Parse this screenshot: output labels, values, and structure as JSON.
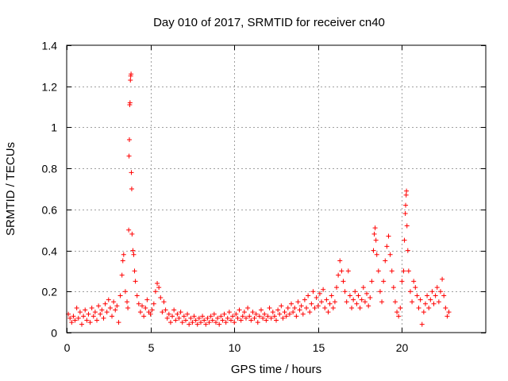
{
  "chart_data": {
    "type": "scatter",
    "title": "Day 010 of 2017, SRMTID for receiver cn40",
    "xlabel": "GPS time / hours",
    "ylabel": "SRMTID / TECUs",
    "xlim": [
      0,
      25
    ],
    "ylim": [
      0,
      1.4
    ],
    "xticks": [
      0,
      5,
      10,
      15,
      20
    ],
    "xtick_labels": [
      "0",
      "5",
      "10",
      "15",
      "20"
    ],
    "yticks": [
      0,
      0.2,
      0.4,
      0.6,
      0.8,
      1.0,
      1.2,
      1.4
    ],
    "ytick_labels": [
      "0",
      "0.2",
      "0.4",
      "0.6",
      "0.8",
      "1",
      "1.2",
      "1.4"
    ],
    "grid": true,
    "marker": "+",
    "color": "#ff0000",
    "series": [
      {
        "name": "SRMTID",
        "points": [
          [
            0.1,
            0.09
          ],
          [
            0.2,
            0.07
          ],
          [
            0.3,
            0.05
          ],
          [
            0.4,
            0.08
          ],
          [
            0.5,
            0.06
          ],
          [
            0.6,
            0.12
          ],
          [
            0.7,
            0.07
          ],
          [
            0.8,
            0.1
          ],
          [
            0.9,
            0.04
          ],
          [
            1.0,
            0.08
          ],
          [
            1.1,
            0.11
          ],
          [
            1.2,
            0.06
          ],
          [
            1.3,
            0.09
          ],
          [
            1.4,
            0.05
          ],
          [
            1.5,
            0.12
          ],
          [
            1.6,
            0.08
          ],
          [
            1.7,
            0.1
          ],
          [
            1.8,
            0.06
          ],
          [
            1.9,
            0.13
          ],
          [
            2.0,
            0.09
          ],
          [
            2.1,
            0.11
          ],
          [
            2.2,
            0.07
          ],
          [
            2.3,
            0.14
          ],
          [
            2.4,
            0.1
          ],
          [
            2.5,
            0.16
          ],
          [
            2.6,
            0.12
          ],
          [
            2.7,
            0.08
          ],
          [
            2.8,
            0.15
          ],
          [
            2.9,
            0.11
          ],
          [
            3.0,
            0.13
          ],
          [
            3.1,
            0.05
          ],
          [
            3.2,
            0.18
          ],
          [
            3.3,
            0.28
          ],
          [
            3.35,
            0.35
          ],
          [
            3.4,
            0.38
          ],
          [
            3.5,
            0.2
          ],
          [
            3.6,
            0.15
          ],
          [
            3.65,
            0.12
          ],
          [
            3.7,
            0.5
          ],
          [
            3.72,
            0.86
          ],
          [
            3.74,
            0.94
          ],
          [
            3.76,
            1.11
          ],
          [
            3.78,
            1.12
          ],
          [
            3.8,
            1.23
          ],
          [
            3.82,
            1.25
          ],
          [
            3.84,
            1.26
          ],
          [
            3.86,
            0.78
          ],
          [
            3.88,
            0.7
          ],
          [
            3.9,
            0.48
          ],
          [
            3.95,
            0.4
          ],
          [
            4.0,
            0.38
          ],
          [
            4.05,
            0.3
          ],
          [
            4.1,
            0.25
          ],
          [
            4.2,
            0.18
          ],
          [
            4.3,
            0.14
          ],
          [
            4.4,
            0.1
          ],
          [
            4.5,
            0.13
          ],
          [
            4.6,
            0.08
          ],
          [
            4.7,
            0.12
          ],
          [
            4.8,
            0.16
          ],
          [
            4.9,
            0.1
          ],
          [
            5.0,
            0.09
          ],
          [
            5.1,
            0.11
          ],
          [
            5.2,
            0.14
          ],
          [
            5.3,
            0.2
          ],
          [
            5.4,
            0.24
          ],
          [
            5.5,
            0.22
          ],
          [
            5.6,
            0.17
          ],
          [
            5.7,
            0.1
          ],
          [
            5.8,
            0.15
          ],
          [
            5.9,
            0.11
          ],
          [
            6.0,
            0.07
          ],
          [
            6.1,
            0.09
          ],
          [
            6.2,
            0.05
          ],
          [
            6.3,
            0.08
          ],
          [
            6.4,
            0.11
          ],
          [
            6.5,
            0.06
          ],
          [
            6.6,
            0.09
          ],
          [
            6.7,
            0.07
          ],
          [
            6.8,
            0.1
          ],
          [
            6.9,
            0.05
          ],
          [
            7.0,
            0.08
          ],
          [
            7.1,
            0.06
          ],
          [
            7.2,
            0.09
          ],
          [
            7.3,
            0.04
          ],
          [
            7.4,
            0.07
          ],
          [
            7.5,
            0.05
          ],
          [
            7.6,
            0.08
          ],
          [
            7.7,
            0.06
          ],
          [
            7.8,
            0.04
          ],
          [
            7.9,
            0.07
          ],
          [
            8.0,
            0.05
          ],
          [
            8.1,
            0.08
          ],
          [
            8.2,
            0.06
          ],
          [
            8.3,
            0.04
          ],
          [
            8.4,
            0.07
          ],
          [
            8.5,
            0.05
          ],
          [
            8.6,
            0.08
          ],
          [
            8.7,
            0.06
          ],
          [
            8.8,
            0.09
          ],
          [
            8.9,
            0.05
          ],
          [
            9.0,
            0.07
          ],
          [
            9.1,
            0.04
          ],
          [
            9.2,
            0.08
          ],
          [
            9.3,
            0.06
          ],
          [
            9.4,
            0.09
          ],
          [
            9.5,
            0.05
          ],
          [
            9.6,
            0.07
          ],
          [
            9.7,
            0.1
          ],
          [
            9.8,
            0.06
          ],
          [
            9.9,
            0.08
          ],
          [
            10.0,
            0.05
          ],
          [
            10.1,
            0.09
          ],
          [
            10.2,
            0.07
          ],
          [
            10.3,
            0.11
          ],
          [
            10.4,
            0.06
          ],
          [
            10.5,
            0.08
          ],
          [
            10.6,
            0.1
          ],
          [
            10.7,
            0.07
          ],
          [
            10.8,
            0.12
          ],
          [
            10.9,
            0.08
          ],
          [
            11.0,
            0.06
          ],
          [
            11.1,
            0.1
          ],
          [
            11.2,
            0.07
          ],
          [
            11.3,
            0.09
          ],
          [
            11.4,
            0.05
          ],
          [
            11.5,
            0.08
          ],
          [
            11.6,
            0.11
          ],
          [
            11.7,
            0.07
          ],
          [
            11.8,
            0.09
          ],
          [
            11.9,
            0.06
          ],
          [
            12.0,
            0.08
          ],
          [
            12.1,
            0.12
          ],
          [
            12.2,
            0.07
          ],
          [
            12.3,
            0.1
          ],
          [
            12.4,
            0.08
          ],
          [
            12.5,
            0.06
          ],
          [
            12.6,
            0.11
          ],
          [
            12.7,
            0.09
          ],
          [
            12.8,
            0.13
          ],
          [
            12.9,
            0.07
          ],
          [
            13.0,
            0.1
          ],
          [
            13.1,
            0.08
          ],
          [
            13.2,
            0.12
          ],
          [
            13.3,
            0.09
          ],
          [
            13.4,
            0.14
          ],
          [
            13.5,
            0.1
          ],
          [
            13.6,
            0.12
          ],
          [
            13.7,
            0.08
          ],
          [
            13.8,
            0.15
          ],
          [
            13.9,
            0.11
          ],
          [
            14.0,
            0.13
          ],
          [
            14.1,
            0.09
          ],
          [
            14.2,
            0.16
          ],
          [
            14.3,
            0.12
          ],
          [
            14.4,
            0.18
          ],
          [
            14.5,
            0.1
          ],
          [
            14.6,
            0.14
          ],
          [
            14.7,
            0.2
          ],
          [
            14.8,
            0.12
          ],
          [
            14.9,
            0.17
          ],
          [
            15.0,
            0.13
          ],
          [
            15.1,
            0.19
          ],
          [
            15.2,
            0.15
          ],
          [
            15.3,
            0.21
          ],
          [
            15.4,
            0.12
          ],
          [
            15.5,
            0.16
          ],
          [
            15.6,
            0.1
          ],
          [
            15.7,
            0.14
          ],
          [
            15.8,
            0.18
          ],
          [
            15.9,
            0.12
          ],
          [
            16.0,
            0.15
          ],
          [
            16.1,
            0.22
          ],
          [
            16.2,
            0.28
          ],
          [
            16.3,
            0.35
          ],
          [
            16.4,
            0.3
          ],
          [
            16.5,
            0.25
          ],
          [
            16.6,
            0.2
          ],
          [
            16.7,
            0.15
          ],
          [
            16.8,
            0.3
          ],
          [
            16.9,
            0.18
          ],
          [
            17.0,
            0.12
          ],
          [
            17.1,
            0.16
          ],
          [
            17.2,
            0.2
          ],
          [
            17.3,
            0.14
          ],
          [
            17.4,
            0.18
          ],
          [
            17.5,
            0.12
          ],
          [
            17.6,
            0.16
          ],
          [
            17.7,
            0.22
          ],
          [
            17.8,
            0.15
          ],
          [
            17.9,
            0.19
          ],
          [
            18.0,
            0.13
          ],
          [
            18.1,
            0.17
          ],
          [
            18.2,
            0.25
          ],
          [
            18.3,
            0.4
          ],
          [
            18.35,
            0.48
          ],
          [
            18.4,
            0.51
          ],
          [
            18.45,
            0.45
          ],
          [
            18.5,
            0.38
          ],
          [
            18.6,
            0.3
          ],
          [
            18.7,
            0.2
          ],
          [
            18.8,
            0.15
          ],
          [
            18.9,
            0.25
          ],
          [
            19.0,
            0.35
          ],
          [
            19.1,
            0.42
          ],
          [
            19.2,
            0.47
          ],
          [
            19.3,
            0.38
          ],
          [
            19.4,
            0.3
          ],
          [
            19.5,
            0.22
          ],
          [
            19.6,
            0.15
          ],
          [
            19.7,
            0.1
          ],
          [
            19.8,
            0.08
          ],
          [
            19.9,
            0.12
          ],
          [
            20.0,
            0.25
          ],
          [
            20.1,
            0.3
          ],
          [
            20.15,
            0.45
          ],
          [
            20.2,
            0.58
          ],
          [
            20.22,
            0.62
          ],
          [
            20.25,
            0.67
          ],
          [
            20.27,
            0.69
          ],
          [
            20.3,
            0.52
          ],
          [
            20.35,
            0.4
          ],
          [
            20.4,
            0.3
          ],
          [
            20.5,
            0.2
          ],
          [
            20.6,
            0.15
          ],
          [
            20.7,
            0.25
          ],
          [
            20.8,
            0.22
          ],
          [
            20.9,
            0.18
          ],
          [
            21.0,
            0.12
          ],
          [
            21.1,
            0.16
          ],
          [
            21.2,
            0.04
          ],
          [
            21.3,
            0.1
          ],
          [
            21.4,
            0.14
          ],
          [
            21.5,
            0.18
          ],
          [
            21.6,
            0.12
          ],
          [
            21.7,
            0.16
          ],
          [
            21.8,
            0.2
          ],
          [
            21.9,
            0.14
          ],
          [
            22.0,
            0.18
          ],
          [
            22.1,
            0.22
          ],
          [
            22.2,
            0.15
          ],
          [
            22.3,
            0.2
          ],
          [
            22.4,
            0.26
          ],
          [
            22.5,
            0.18
          ],
          [
            22.6,
            0.12
          ],
          [
            22.7,
            0.08
          ],
          [
            22.8,
            0.1
          ]
        ]
      }
    ]
  }
}
